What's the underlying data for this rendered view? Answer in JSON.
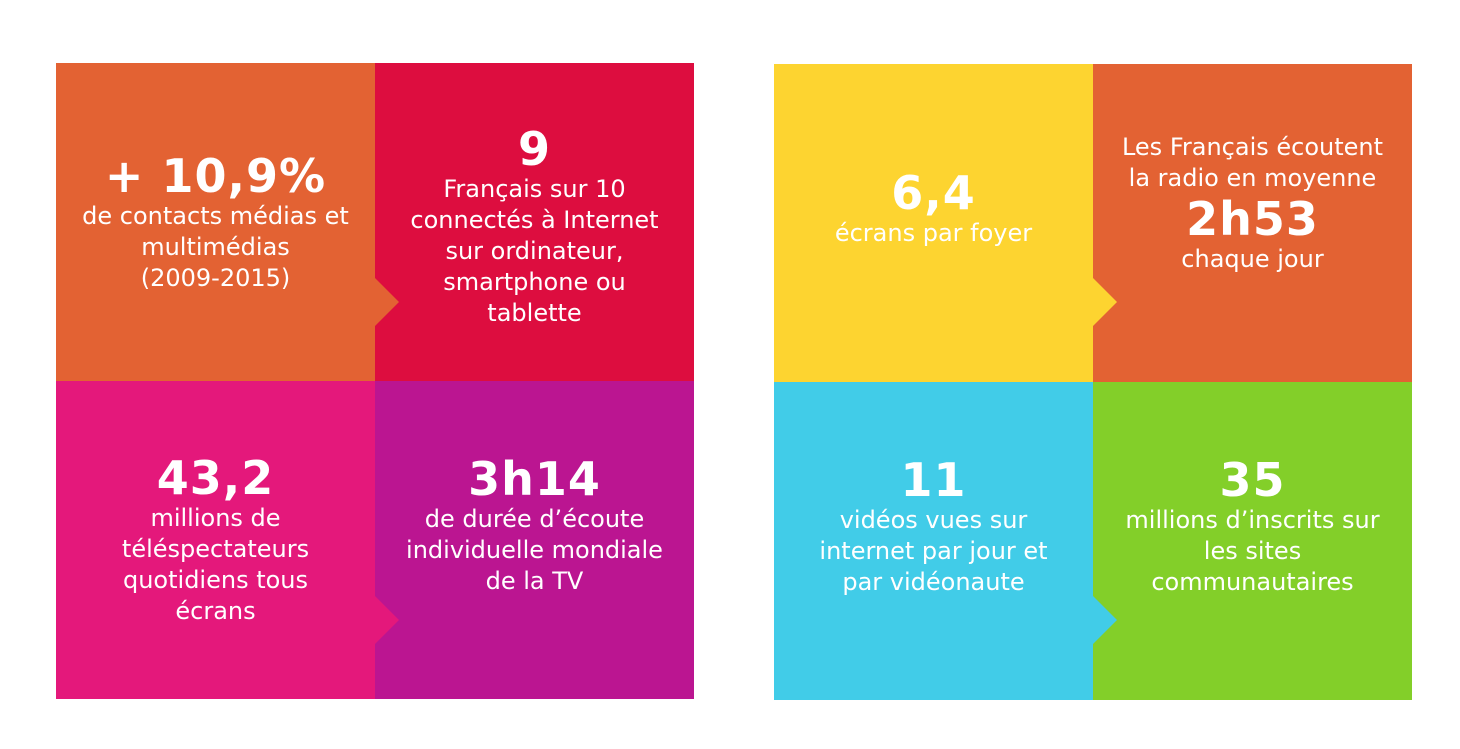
{
  "tiles": {
    "contacts": {
      "big": "+ 10,9%",
      "text": "de contacts médias et\nmultimédias\n(2009-2015)",
      "color": "#E36233"
    },
    "internet": {
      "big": "9",
      "text": "Français sur 10\nconnectés à Internet\nsur ordinateur,\nsmartphone ou\ntablette",
      "color": "#DD0D3F"
    },
    "tv_viewers": {
      "big": "43,2",
      "text": "millions de\ntéléspectateurs\nquotidiens tous\nécrans",
      "color": "#E4187B"
    },
    "tv_duration": {
      "big": "3h14",
      "text": "de durée d’écoute\nindividuelle mondiale\nde la TV",
      "color": "#BB1591"
    },
    "screens": {
      "big": "6,4",
      "text": "écrans par foyer",
      "color": "#FDD430"
    },
    "radio": {
      "text_before": "Les Français écoutent\nla radio en moyenne",
      "big": "2h53",
      "text": "chaque jour",
      "color": "#E36233"
    },
    "videos": {
      "big": "11",
      "text": "vidéos vues sur\ninternet par jour et\npar vidéonaute",
      "color": "#41CCE8"
    },
    "social": {
      "big": "35",
      "text": "millions d’inscrits sur\nles sites\ncommunautaires",
      "color": "#83CF29"
    }
  }
}
